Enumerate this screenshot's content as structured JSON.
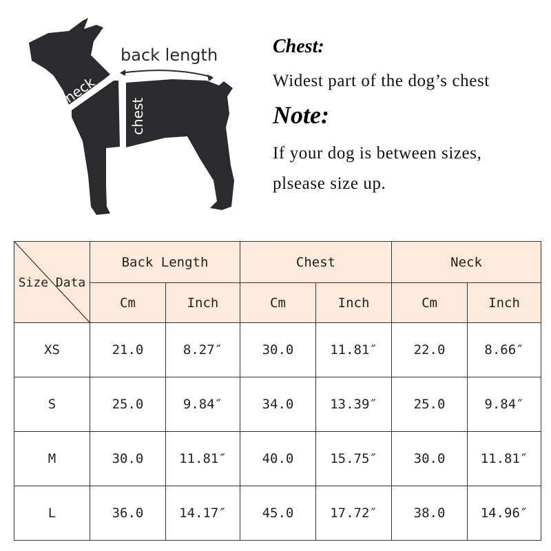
{
  "diagram": {
    "labels": {
      "back_length": "back length",
      "neck": "neck",
      "chest": "chest"
    }
  },
  "notes": {
    "chest_heading": "Chest:",
    "chest_text": "Widest part of the dog’s chest",
    "note_heading": "Note:",
    "note_line1": "If your dog is between sizes,",
    "note_line2": "plsease size up."
  },
  "table": {
    "corner": "Size Data",
    "groups": [
      "Back Length",
      "Chest",
      "Neck"
    ],
    "units": [
      "Cm",
      "Inch",
      "Cm",
      "Inch",
      "Cm",
      "Inch"
    ],
    "rows": [
      {
        "size": "XS",
        "values": [
          "21.0",
          "8.27″",
          "30.0",
          "11.81″",
          "22.0",
          "8.66″"
        ]
      },
      {
        "size": "S",
        "values": [
          "25.0",
          "9.84″",
          "34.0",
          "13.39″",
          "25.0",
          "9.84″"
        ]
      },
      {
        "size": "M",
        "values": [
          "30.0",
          "11.81″",
          "40.0",
          "15.75″",
          "30.0",
          "11.81″"
        ]
      },
      {
        "size": "L",
        "values": [
          "36.0",
          "14.17″",
          "45.0",
          "17.72″",
          "38.0",
          "14.96″"
        ]
      }
    ],
    "header_color": "#fce9da"
  }
}
